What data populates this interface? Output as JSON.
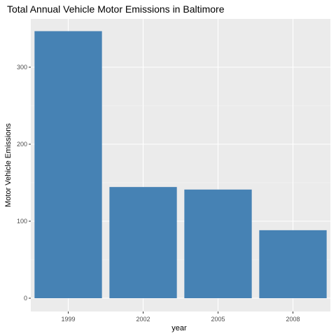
{
  "chart_data": {
    "type": "bar",
    "title": "Total Annual Vehicle Motor Emissions in Baltimore",
    "xlabel": "year",
    "ylabel": "Motor Vehicle Emissions",
    "categories": [
      "1999",
      "2002",
      "2005",
      "2008"
    ],
    "values": [
      346.8,
      144.4,
      141.1,
      88.3
    ],
    "yticks": [
      0,
      100,
      200,
      300
    ],
    "ylim": [
      0,
      364
    ],
    "grid": true,
    "legend": "none",
    "colors": {
      "bar": "#4682b4",
      "panel": "#ebebeb",
      "grid_major": "#ffffff",
      "grid_minor": "#f5f5f5"
    }
  }
}
